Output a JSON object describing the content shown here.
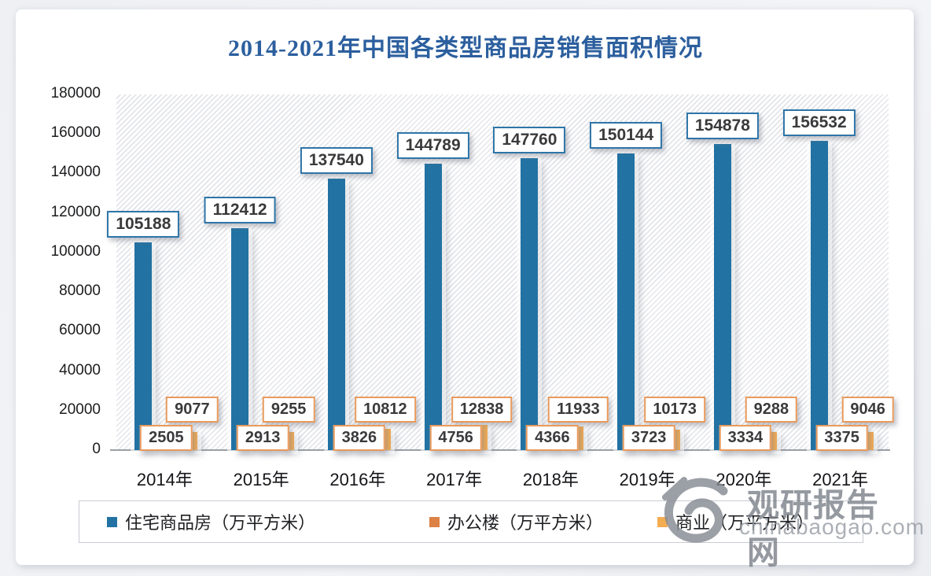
{
  "title": "2014-2021年中国各类型商品房销售面积情况",
  "watermark": {
    "site_name": "观研报告网",
    "site_url": "chinabaogao.com"
  },
  "colors": {
    "residential": "#2272a3",
    "office": "#dc8246",
    "commercial": "#f4ac52",
    "residential_box_border": "#2e75a8",
    "small_box_border": "#e99a5c",
    "title_text": "#2c5f9e",
    "axis_line": "#9ba0a7"
  },
  "chart_data": {
    "type": "bar",
    "title": "2014-2021年中国各类型商品房销售面积情况",
    "categories": [
      "2014年",
      "2015年",
      "2016年",
      "2017年",
      "2018年",
      "2019年",
      "2020年",
      "2021年"
    ],
    "series": [
      {
        "key": "residential",
        "name": "住宅商品房（万平方米）",
        "color": "#2272a3",
        "values": [
          105188,
          112412,
          137540,
          144789,
          147760,
          150144,
          154878,
          156532
        ]
      },
      {
        "key": "office",
        "name": "办公楼（万平方米）",
        "color": "#dc8246",
        "values": [
          2505,
          2913,
          3826,
          4756,
          4366,
          3723,
          3334,
          3375
        ]
      },
      {
        "key": "commercial",
        "name": "商业（万平方米）",
        "color": "#f4ac52",
        "values": [
          9077,
          9255,
          10812,
          12838,
          11933,
          10173,
          9288,
          9046
        ]
      }
    ],
    "xlabel": "",
    "ylabel": "",
    "ylim": [
      0,
      180000
    ],
    "ytick_step": 20000,
    "grid": false,
    "legend_position": "bottom",
    "data_labels": true
  }
}
